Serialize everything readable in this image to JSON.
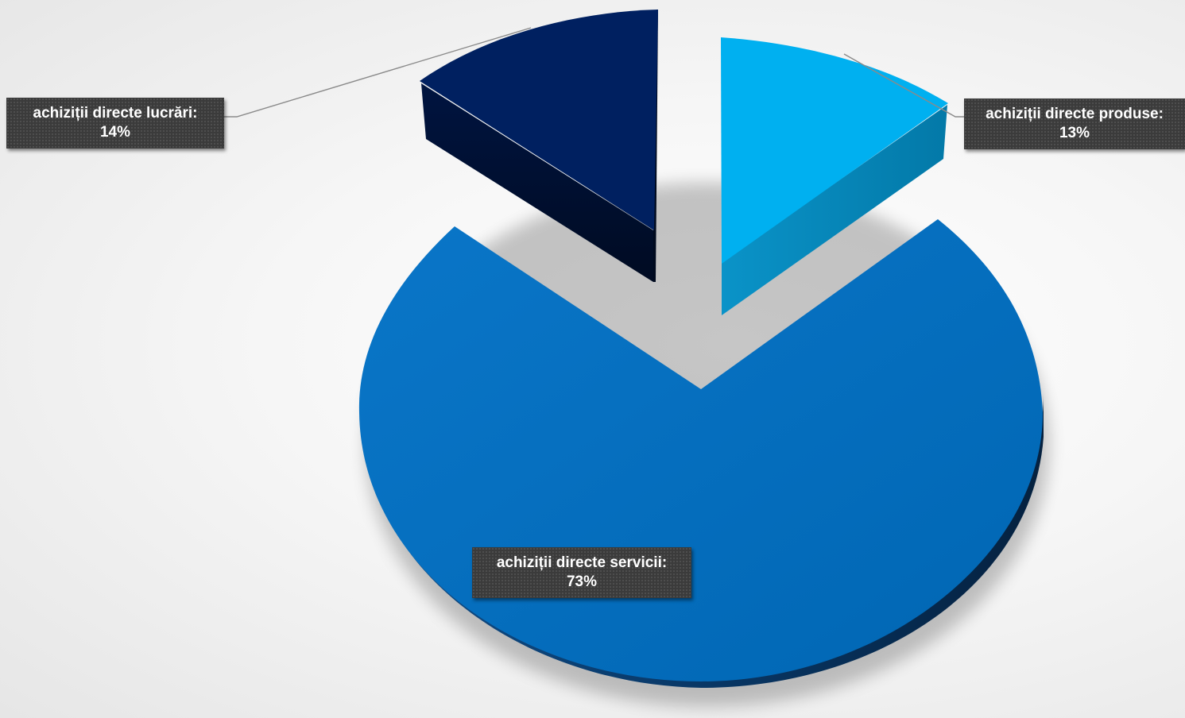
{
  "chart_data": {
    "type": "pie",
    "style": "3d-exploded",
    "title": "",
    "legend": "none",
    "slices": [
      {
        "category": "achiziții directe lucrări",
        "value": 14,
        "value_label": "14%",
        "label_text": "achiziții directe lucrări:",
        "color": "#002060",
        "side_color": "#000e2e"
      },
      {
        "category": "achiziții directe produse",
        "value": 13,
        "value_label": "13%",
        "label_text": "achiziții directe produse:",
        "color": "#00b0f0",
        "side_color": "#0087b8"
      },
      {
        "category": "achiziții directe servicii",
        "value": 73,
        "value_label": "73%",
        "label_text": "achiziții directe servicii:",
        "color": "#0070c0",
        "side_color": "#0b3a66"
      }
    ]
  }
}
